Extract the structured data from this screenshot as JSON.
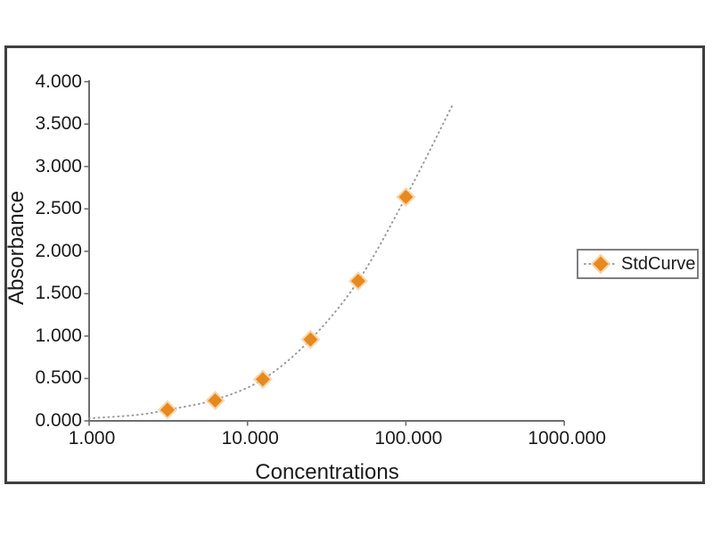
{
  "chart_data": {
    "type": "scatter",
    "title": "",
    "xlabel": "Concentrations",
    "ylabel": "Absorbance",
    "x_scale": "log",
    "xlim": [
      1,
      1000
    ],
    "ylim": [
      0,
      4
    ],
    "grid": false,
    "x_tick_labels": [
      "1.000",
      "10.000",
      "100.000",
      "1000.000"
    ],
    "x_tick_values": [
      1,
      10,
      100,
      1000
    ],
    "y_tick_labels": [
      "4.000",
      "3.500",
      "3.000",
      "2.500",
      "2.000",
      "1.500",
      "1.000",
      "0.500",
      "0.000"
    ],
    "y_tick_values": [
      4.0,
      3.5,
      3.0,
      2.5,
      2.0,
      1.5,
      1.0,
      0.5,
      0.0
    ],
    "series": [
      {
        "name": "StdCurve",
        "marker": "diamond",
        "x": [
          3.125,
          6.25,
          12.5,
          25,
          50,
          100
        ],
        "y": [
          0.13,
          0.24,
          0.49,
          0.96,
          1.65,
          2.64
        ]
      }
    ],
    "fit_curve": {
      "style": "dotted",
      "x": [
        1,
        2,
        3.125,
        6.25,
        12.5,
        25,
        50,
        100,
        200
      ],
      "y": [
        0.03,
        0.07,
        0.13,
        0.25,
        0.49,
        0.96,
        1.65,
        2.64,
        3.75
      ]
    },
    "legend": {
      "label": "StdCurve",
      "position": "right-middle"
    }
  },
  "colors": {
    "marker_fill": "#E8891E",
    "marker_halo": "#F6CE9B",
    "curve": "#9a9a9a",
    "axis": "#6e6e6e",
    "frame_border": "#3f3f3f",
    "legend_border": "#7f7f7f",
    "text": "#1b1b1b",
    "background": "#ffffff"
  }
}
